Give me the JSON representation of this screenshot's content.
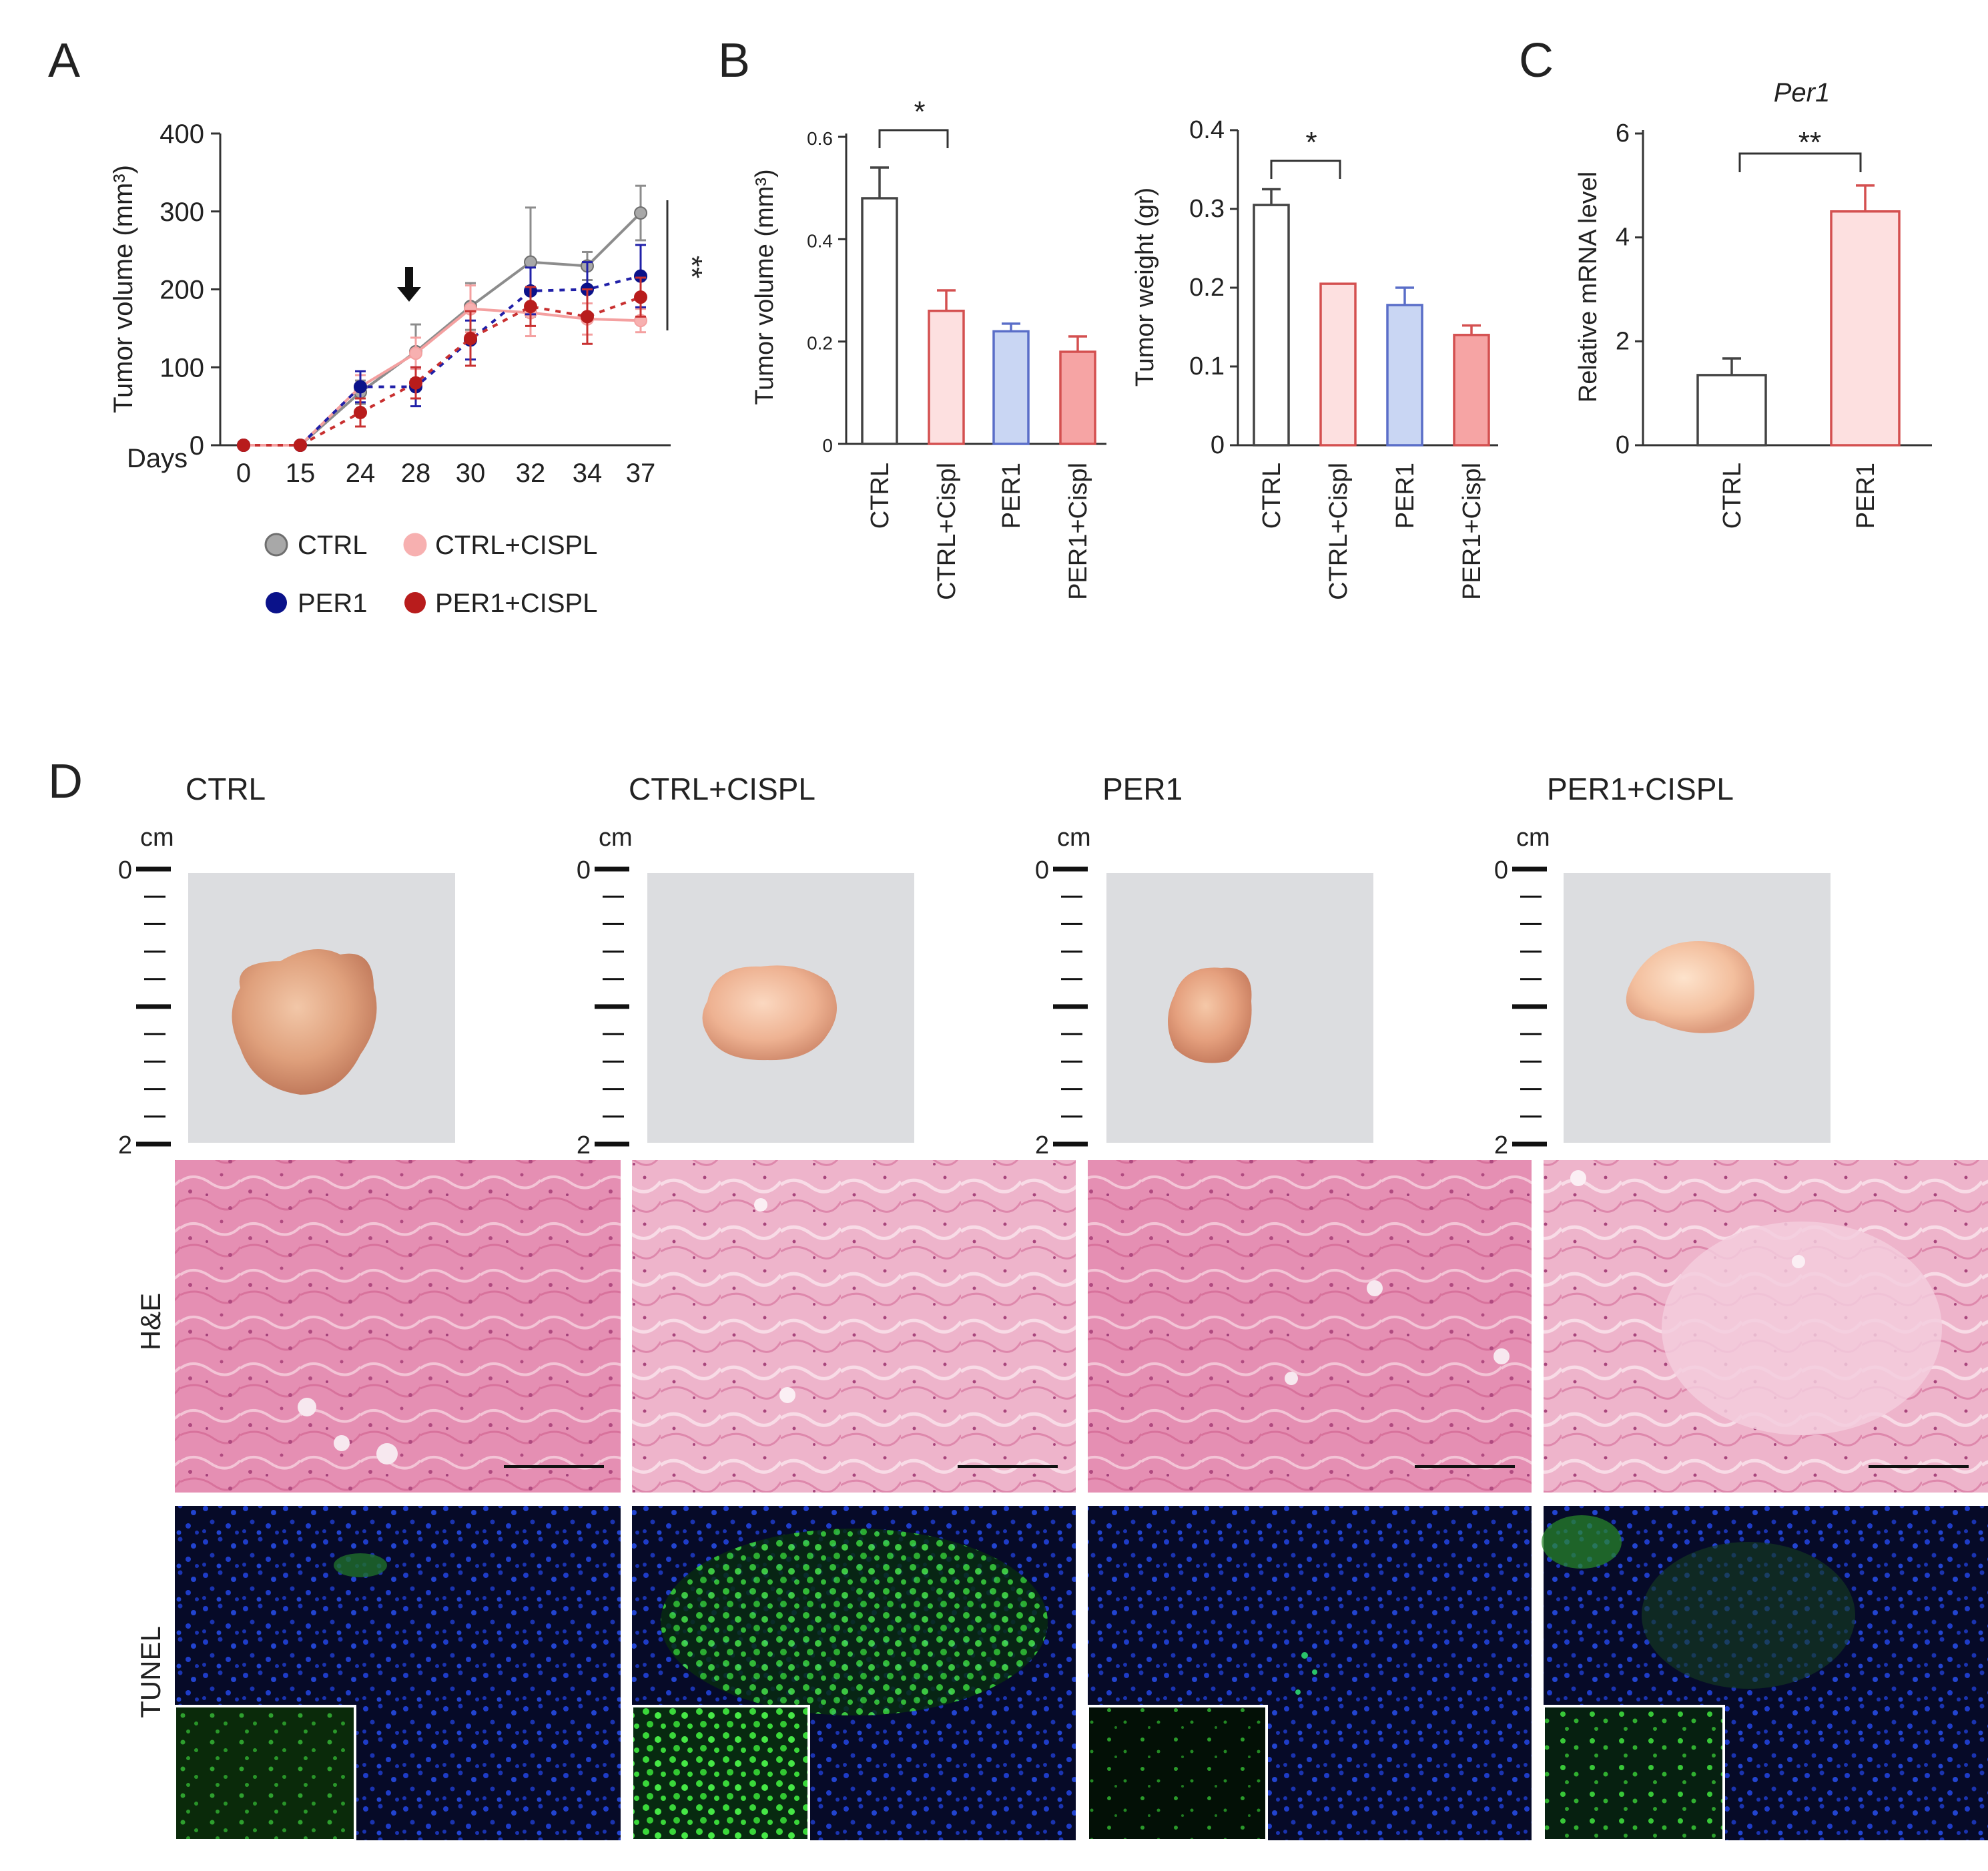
{
  "panel_letters": {
    "a": "A",
    "b": "B",
    "c": "C",
    "d": "D"
  },
  "colors": {
    "ctrl": "#8c8c8c",
    "ctrl_cispl": "#f4a0a0",
    "per1": "#0a128a",
    "per1_cispl": "#b81c1c",
    "per1_bar_fill": "#c9d6f3",
    "per1_bar_stroke": "#5a6ec8",
    "ctrl_cispl_bar_fill": "#fde0e0",
    "per1_cispl_bar_fill": "#f6a4a4",
    "bar_red_stroke": "#d45050"
  },
  "chart_data": [
    {
      "id": "A",
      "type": "line",
      "xlabel": "Days",
      "ylabel": "Tumor volume (mm³)",
      "x": [
        "0",
        "15",
        "24",
        "28",
        "30",
        "32",
        "34",
        "37"
      ],
      "ylim": [
        0,
        400
      ],
      "yticks": [
        0,
        100,
        200,
        300,
        400
      ],
      "series": [
        {
          "name": "CTRL",
          "values": [
            0,
            0,
            68,
            120,
            178,
            235,
            230,
            298
          ],
          "err": [
            0,
            0,
            15,
            35,
            30,
            70,
            18,
            35
          ],
          "style": "solid"
        },
        {
          "name": "CTRL+CISPL",
          "values": [
            0,
            0,
            75,
            118,
            175,
            170,
            162,
            160
          ],
          "err": [
            0,
            0,
            15,
            20,
            30,
            30,
            20,
            15
          ],
          "style": "solid"
        },
        {
          "name": "PER1",
          "values": [
            0,
            0,
            75,
            75,
            135,
            198,
            200,
            217
          ],
          "err": [
            0,
            0,
            20,
            25,
            25,
            30,
            35,
            40
          ],
          "style": "dashed"
        },
        {
          "name": "PER1+CISPL",
          "values": [
            0,
            0,
            42,
            80,
            137,
            178,
            165,
            190
          ],
          "err": [
            0,
            0,
            18,
            20,
            35,
            25,
            35,
            25
          ],
          "style": "dashed"
        }
      ],
      "arrow_at": "28",
      "significance": "**"
    },
    {
      "id": "B1",
      "type": "bar",
      "ylabel": "Tumor volume (mm³)",
      "categories": [
        "CTRL",
        "CTRL+Cispl",
        "PER1",
        "PER1+Cispl"
      ],
      "values": [
        0.48,
        0.26,
        0.22,
        0.18
      ],
      "err": [
        0.06,
        0.04,
        0.015,
        0.03
      ],
      "ylim": [
        0,
        0.6
      ],
      "yticks": [
        "0",
        "0.2",
        "0.4",
        "0.6"
      ],
      "significance": "*"
    },
    {
      "id": "B2",
      "type": "bar",
      "ylabel": "Tumor weight (gr)",
      "categories": [
        "CTRL",
        "CTRL+Cispl",
        "PER1",
        "PER1+Cispl"
      ],
      "values": [
        0.305,
        0.205,
        0.178,
        0.14
      ],
      "err": [
        0.02,
        0.0,
        0.022,
        0.012
      ],
      "ylim": [
        0,
        0.4
      ],
      "yticks": [
        "0",
        "0.1",
        "0.2",
        "0.3",
        "0.4"
      ],
      "significance": "*"
    },
    {
      "id": "C",
      "type": "bar",
      "title": "Per1",
      "ylabel": "Relative mRNA level",
      "categories": [
        "CTRL",
        "PER1"
      ],
      "values": [
        1.35,
        4.5
      ],
      "err": [
        0.32,
        0.5
      ],
      "ylim": [
        0,
        6
      ],
      "yticks": [
        "0",
        "2",
        "4",
        "6"
      ],
      "significance": "**"
    }
  ],
  "panel_d": {
    "groups": [
      "CTRL",
      "CTRL+CISPL",
      "PER1",
      "PER1+CISPL"
    ],
    "ruler": {
      "unit": "cm",
      "top": "0",
      "bottom": "2"
    },
    "row_labels": {
      "he": "H&E",
      "tunel": "TUNEL"
    }
  }
}
